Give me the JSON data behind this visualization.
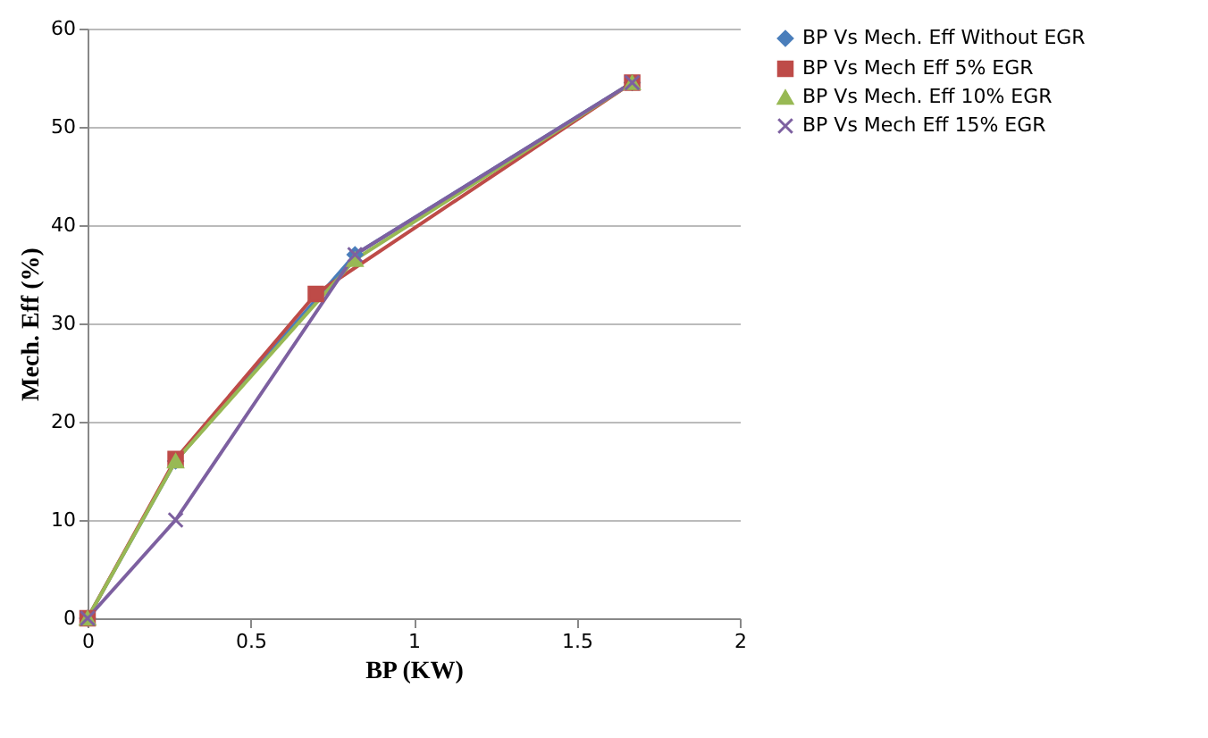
{
  "chart_data": {
    "type": "line",
    "xlabel": "BP (KW)",
    "ylabel": "Mech. Eff (%)",
    "xlim": [
      0,
      2
    ],
    "xticks": [
      0,
      0.5,
      1,
      1.5,
      2
    ],
    "ylim": [
      0,
      60
    ],
    "yticks": [
      0,
      10,
      20,
      30,
      40,
      50,
      60
    ],
    "grid": "y",
    "legend": "right",
    "series": [
      {
        "name": "BP Vs Mech. Eff Without EGR",
        "color": "#4a7ebb",
        "marker": "diamond",
        "x": [
          0,
          0.27,
          0.82,
          1.67
        ],
        "values": [
          0,
          16,
          37,
          54.5
        ]
      },
      {
        "name": "BP Vs Mech Eff 5% EGR",
        "color": "#be4b48",
        "marker": "square",
        "x": [
          0,
          0.27,
          0.7,
          1.67
        ],
        "values": [
          0,
          16.2,
          33,
          54.5
        ]
      },
      {
        "name": "BP Vs Mech. Eff 10% EGR",
        "color": "#98b954",
        "marker": "triangle",
        "x": [
          0,
          0.27,
          0.82,
          1.67
        ],
        "values": [
          0,
          16,
          36.5,
          54.5
        ]
      },
      {
        "name": "BP Vs Mech Eff 15% EGR",
        "color": "#7d60a0",
        "marker": "cross",
        "x": [
          0,
          0.27,
          0.82,
          1.67
        ],
        "values": [
          0,
          10,
          37,
          54.5
        ]
      }
    ]
  }
}
